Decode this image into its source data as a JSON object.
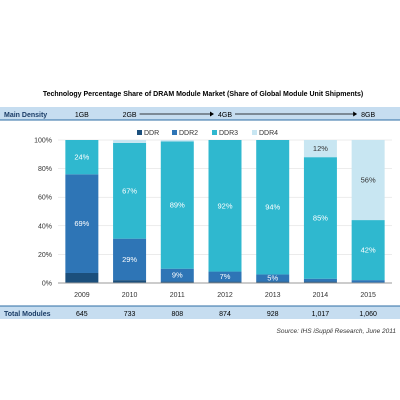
{
  "chart_data": {
    "type": "bar",
    "stacked": true,
    "title": "Technology Percentage Share of DRAM Module Market (Share of Global Module Unit Shipments)",
    "categories": [
      "2009",
      "2010",
      "2011",
      "2012",
      "2013",
      "2014",
      "2015"
    ],
    "ylim": [
      0,
      100
    ],
    "yticks": [
      "0%",
      "20%",
      "40%",
      "60%",
      "80%",
      "100%"
    ],
    "legend_position": "top",
    "series": [
      {
        "name": "DDR",
        "color": "#1b4f7c",
        "values": [
          7,
          2,
          1,
          1,
          1,
          1,
          0
        ],
        "labels": [
          "",
          "",
          "",
          "",
          "",
          "",
          ""
        ]
      },
      {
        "name": "DDR2",
        "color": "#2e75b6",
        "values": [
          69,
          29,
          9,
          7,
          5,
          2,
          2
        ],
        "labels": [
          "69%",
          "29%",
          "9%",
          "7%",
          "5%",
          "",
          ""
        ]
      },
      {
        "name": "DDR3",
        "color": "#2fb8cf",
        "values": [
          24,
          67,
          89,
          92,
          94,
          85,
          42
        ],
        "labels": [
          "24%",
          "67%",
          "89%",
          "92%",
          "94%",
          "85%",
          "42%"
        ]
      },
      {
        "name": "DDR4",
        "color": "#c8e6f2",
        "values": [
          0,
          2,
          1,
          0,
          0,
          12,
          56
        ],
        "labels": [
          "",
          "",
          "",
          "",
          "",
          "12%",
          "56%"
        ]
      }
    ],
    "main_density": {
      "label": "Main Density",
      "values": [
        "1GB",
        "2GB",
        "4GB",
        "8GB"
      ]
    },
    "total_modules": {
      "label": "Total Modules",
      "values": [
        "645",
        "733",
        "808",
        "874",
        "928",
        "1,017",
        "1,060"
      ]
    },
    "source": "Source: IHS iSuppli Research, June 2011"
  },
  "colors": {
    "band": "#c6ddf0",
    "band_line": "#2e6da4",
    "axis": "#999999",
    "grid": "#d8d8d8"
  }
}
